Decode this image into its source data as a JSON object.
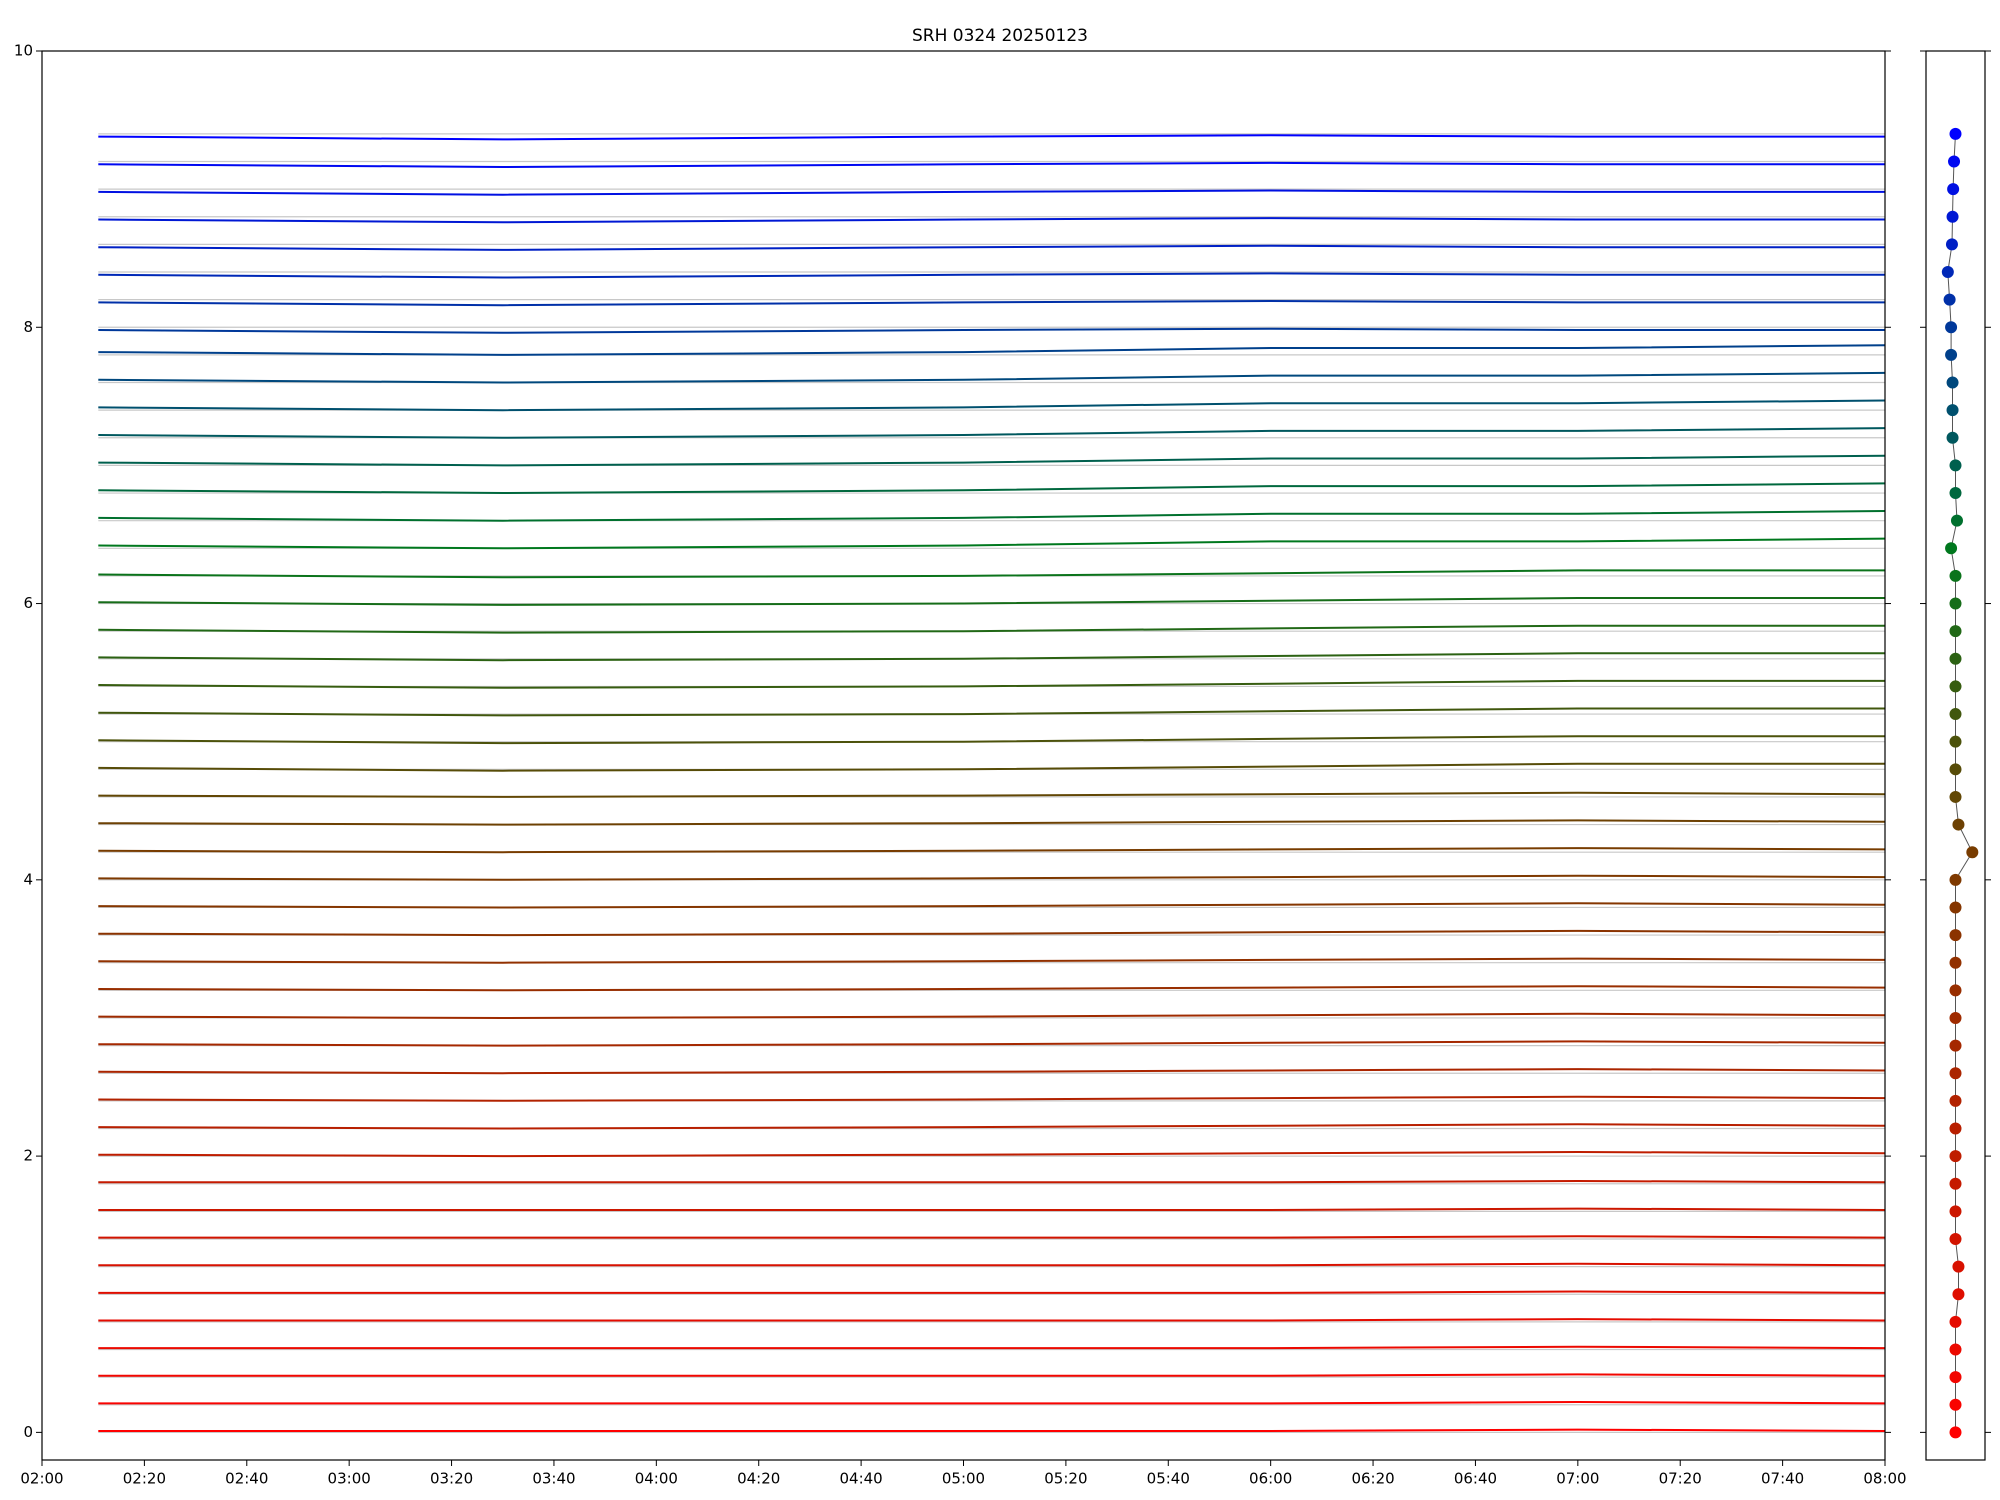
{
  "chart_data": [
    {
      "type": "line",
      "title": "SRH 0324 20250123",
      "x": [
        "02:11",
        "03:30",
        "05:00",
        "06:00",
        "07:00",
        "08:00"
      ],
      "xlim": [
        "02:00",
        "08:00"
      ],
      "xticks": [
        "02:00",
        "02:20",
        "02:40",
        "03:00",
        "03:20",
        "03:40",
        "04:00",
        "04:20",
        "04:40",
        "05:00",
        "05:20",
        "05:40",
        "06:00",
        "06:20",
        "06:40",
        "07:00",
        "07:20",
        "07:40",
        "08:00"
      ],
      "ylim": [
        -0.2,
        10
      ],
      "yticks": [
        0,
        2,
        4,
        6,
        8,
        10
      ],
      "baseline_color": "#c8c8c8",
      "series": [
        {
          "color": "#ff0000",
          "baseline": 0,
          "values": [
            0.01,
            0.01,
            0.01,
            0.01,
            0.02,
            0.01
          ]
        },
        {
          "color": "#f90300",
          "baseline": 0.2,
          "values": [
            0.21,
            0.21,
            0.21,
            0.21,
            0.22,
            0.21
          ]
        },
        {
          "color": "#f20600",
          "baseline": 0.4,
          "values": [
            0.41,
            0.41,
            0.41,
            0.41,
            0.42,
            0.41
          ]
        },
        {
          "color": "#ec0900",
          "baseline": 0.6,
          "values": [
            0.61,
            0.61,
            0.61,
            0.61,
            0.62,
            0.61
          ]
        },
        {
          "color": "#e50b00",
          "baseline": 0.8,
          "values": [
            0.81,
            0.81,
            0.81,
            0.81,
            0.82,
            0.81
          ]
        },
        {
          "color": "#df0e00",
          "baseline": 1.0,
          "values": [
            1.01,
            1.01,
            1.01,
            1.01,
            1.02,
            1.01
          ]
        },
        {
          "color": "#d81100",
          "baseline": 1.2,
          "values": [
            1.21,
            1.21,
            1.21,
            1.21,
            1.22,
            1.21
          ]
        },
        {
          "color": "#d21400",
          "baseline": 1.4,
          "values": [
            1.41,
            1.41,
            1.41,
            1.41,
            1.42,
            1.41
          ]
        },
        {
          "color": "#cc1700",
          "baseline": 1.6,
          "values": [
            1.61,
            1.61,
            1.61,
            1.61,
            1.62,
            1.61
          ]
        },
        {
          "color": "#c51a00",
          "baseline": 1.8,
          "values": [
            1.81,
            1.81,
            1.81,
            1.81,
            1.82,
            1.81
          ]
        },
        {
          "color": "#bf1d00",
          "baseline": 2.0,
          "values": [
            2.01,
            2.0,
            2.01,
            2.02,
            2.03,
            2.02
          ]
        },
        {
          "color": "#b81f00",
          "baseline": 2.2,
          "values": [
            2.21,
            2.2,
            2.21,
            2.22,
            2.23,
            2.22
          ]
        },
        {
          "color": "#b22200",
          "baseline": 2.4,
          "values": [
            2.41,
            2.4,
            2.41,
            2.42,
            2.43,
            2.42
          ]
        },
        {
          "color": "#ab2500",
          "baseline": 2.6,
          "values": [
            2.61,
            2.6,
            2.61,
            2.62,
            2.63,
            2.62
          ]
        },
        {
          "color": "#a52800",
          "baseline": 2.8,
          "values": [
            2.81,
            2.8,
            2.81,
            2.82,
            2.83,
            2.82
          ]
        },
        {
          "color": "#9f2b00",
          "baseline": 3.0,
          "values": [
            3.01,
            3.0,
            3.01,
            3.02,
            3.03,
            3.02
          ]
        },
        {
          "color": "#982e00",
          "baseline": 3.2,
          "values": [
            3.21,
            3.2,
            3.21,
            3.22,
            3.23,
            3.22
          ]
        },
        {
          "color": "#923100",
          "baseline": 3.4,
          "values": [
            3.41,
            3.4,
            3.41,
            3.42,
            3.43,
            3.42
          ]
        },
        {
          "color": "#8b3300",
          "baseline": 3.6,
          "values": [
            3.61,
            3.6,
            3.61,
            3.62,
            3.63,
            3.62
          ]
        },
        {
          "color": "#853600",
          "baseline": 3.8,
          "values": [
            3.81,
            3.8,
            3.81,
            3.82,
            3.83,
            3.82
          ]
        },
        {
          "color": "#7e3900",
          "baseline": 4.0,
          "values": [
            4.01,
            4.0,
            4.01,
            4.02,
            4.03,
            4.02
          ]
        },
        {
          "color": "#783c00",
          "baseline": 4.2,
          "values": [
            4.21,
            4.2,
            4.21,
            4.22,
            4.23,
            4.22
          ]
        },
        {
          "color": "#6d4103",
          "baseline": 4.4,
          "values": [
            4.41,
            4.4,
            4.41,
            4.42,
            4.43,
            4.42
          ]
        },
        {
          "color": "#624705",
          "baseline": 4.6,
          "values": [
            4.61,
            4.6,
            4.61,
            4.62,
            4.63,
            4.62
          ]
        },
        {
          "color": "#574c08",
          "baseline": 4.8,
          "values": [
            4.81,
            4.79,
            4.8,
            4.82,
            4.84,
            4.84
          ]
        },
        {
          "color": "#4c520b",
          "baseline": 5.0,
          "values": [
            5.01,
            4.99,
            5.0,
            5.02,
            5.04,
            5.04
          ]
        },
        {
          "color": "#41570e",
          "baseline": 5.2,
          "values": [
            5.21,
            5.19,
            5.2,
            5.22,
            5.24,
            5.24
          ]
        },
        {
          "color": "#375d10",
          "baseline": 5.4,
          "values": [
            5.41,
            5.39,
            5.4,
            5.42,
            5.44,
            5.44
          ]
        },
        {
          "color": "#2c6213",
          "baseline": 5.6,
          "values": [
            5.61,
            5.59,
            5.6,
            5.62,
            5.64,
            5.64
          ]
        },
        {
          "color": "#216816",
          "baseline": 5.8,
          "values": [
            5.81,
            5.79,
            5.8,
            5.82,
            5.84,
            5.84
          ]
        },
        {
          "color": "#166d19",
          "baseline": 6.0,
          "values": [
            6.01,
            5.99,
            6.0,
            6.02,
            6.04,
            6.04
          ]
        },
        {
          "color": "#0b731b",
          "baseline": 6.2,
          "values": [
            6.21,
            6.19,
            6.2,
            6.22,
            6.24,
            6.24
          ]
        },
        {
          "color": "#00781e",
          "baseline": 6.4,
          "values": [
            6.42,
            6.4,
            6.42,
            6.45,
            6.45,
            6.47
          ]
        },
        {
          "color": "#00702e",
          "baseline": 6.6,
          "values": [
            6.62,
            6.6,
            6.62,
            6.65,
            6.65,
            6.67
          ]
        },
        {
          "color": "#00683e",
          "baseline": 6.8,
          "values": [
            6.82,
            6.8,
            6.82,
            6.85,
            6.85,
            6.87
          ]
        },
        {
          "color": "#00604e",
          "baseline": 7.0,
          "values": [
            7.02,
            7.0,
            7.02,
            7.05,
            7.05,
            7.07
          ]
        },
        {
          "color": "#00585e",
          "baseline": 7.2,
          "values": [
            7.22,
            7.2,
            7.22,
            7.25,
            7.25,
            7.27
          ]
        },
        {
          "color": "#00506e",
          "baseline": 7.4,
          "values": [
            7.42,
            7.4,
            7.42,
            7.45,
            7.45,
            7.47
          ]
        },
        {
          "color": "#00487d",
          "baseline": 7.6,
          "values": [
            7.62,
            7.6,
            7.62,
            7.65,
            7.65,
            7.67
          ]
        },
        {
          "color": "#00408b",
          "baseline": 7.8,
          "values": [
            7.82,
            7.8,
            7.82,
            7.85,
            7.85,
            7.87
          ]
        },
        {
          "color": "#00389a",
          "baseline": 8.0,
          "values": [
            7.98,
            7.96,
            7.98,
            7.99,
            7.98,
            7.98
          ]
        },
        {
          "color": "#0030a8",
          "baseline": 8.2,
          "values": [
            8.18,
            8.16,
            8.18,
            8.19,
            8.18,
            8.18
          ]
        },
        {
          "color": "#0028b7",
          "baseline": 8.4,
          "values": [
            8.38,
            8.36,
            8.38,
            8.39,
            8.38,
            8.38
          ]
        },
        {
          "color": "#0020c5",
          "baseline": 8.6,
          "values": [
            8.58,
            8.56,
            8.58,
            8.59,
            8.58,
            8.58
          ]
        },
        {
          "color": "#0018d4",
          "baseline": 8.8,
          "values": [
            8.78,
            8.76,
            8.78,
            8.79,
            8.78,
            8.78
          ]
        },
        {
          "color": "#0010e2",
          "baseline": 9.0,
          "values": [
            8.98,
            8.96,
            8.98,
            8.99,
            8.98,
            8.98
          ]
        },
        {
          "color": "#0008f1",
          "baseline": 9.2,
          "values": [
            9.18,
            9.16,
            9.18,
            9.19,
            9.18,
            9.18
          ]
        },
        {
          "color": "#0000ff",
          "baseline": 9.4,
          "values": [
            9.38,
            9.36,
            9.38,
            9.39,
            9.38,
            9.38
          ]
        }
      ]
    },
    {
      "type": "scatter",
      "xlim": [
        -1,
        1
      ],
      "ylim": [
        -0.2,
        10
      ],
      "yticks": [
        0,
        2,
        4,
        6,
        8,
        10
      ],
      "line_color": "#555555",
      "x": [
        0,
        0,
        0,
        0,
        0,
        0.1,
        0.1,
        0,
        0,
        0,
        0,
        0,
        0,
        0,
        0,
        0,
        0,
        0,
        0,
        0,
        0,
        0.57,
        0.1,
        0,
        0,
        0,
        0,
        0,
        0,
        0,
        0,
        0,
        -0.15,
        0.05,
        0,
        0,
        -0.1,
        -0.1,
        -0.1,
        -0.15,
        -0.15,
        -0.2,
        -0.26,
        -0.12,
        -0.1,
        -0.08,
        -0.05,
        0
      ],
      "y": [
        0,
        0.2,
        0.4,
        0.6,
        0.8,
        1.0,
        1.2,
        1.4,
        1.6,
        1.8,
        2.0,
        2.2,
        2.4,
        2.6,
        2.8,
        3.0,
        3.2,
        3.4,
        3.6,
        3.8,
        4.0,
        4.2,
        4.4,
        4.6,
        4.8,
        5.0,
        5.2,
        5.4,
        5.6,
        5.8,
        6.0,
        6.2,
        6.4,
        6.6,
        6.8,
        7.0,
        7.2,
        7.4,
        7.6,
        7.8,
        8.0,
        8.2,
        8.4,
        8.6,
        8.8,
        9.0,
        9.2,
        9.4
      ]
    }
  ]
}
